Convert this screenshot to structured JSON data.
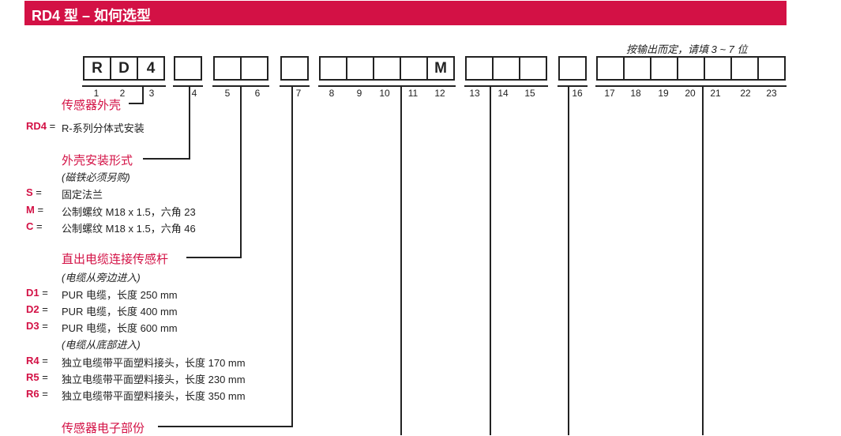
{
  "title": "RD4 型 – 如何选型",
  "output_note": "按输出而定，请填 3 ~ 7 位",
  "boxes": {
    "c1": "R",
    "c2": "D",
    "c3": "4",
    "c12": "M"
  },
  "positions": [
    "1",
    "2",
    "3",
    "4",
    "5",
    "6",
    "7",
    "8",
    "9",
    "10",
    "11",
    "12",
    "13",
    "14",
    "15",
    "16",
    "17",
    "18",
    "19",
    "20",
    "21",
    "22",
    "23"
  ],
  "sections": {
    "housing": {
      "label": "传感器外壳",
      "items": [
        {
          "code": "RD4",
          "eq": "=",
          "desc": "R-系列分体式安装"
        }
      ]
    },
    "mount": {
      "label": "外壳安装形式",
      "note": "(磁铁必须另购)",
      "items": [
        {
          "code": "S",
          "eq": "=",
          "desc": "固定法兰"
        },
        {
          "code": "M",
          "eq": "=",
          "desc": "公制螺纹 M18 x 1.5，六角 23"
        },
        {
          "code": "C",
          "eq": "=",
          "desc": "公制螺纹 M18 x 1.5，六角 46"
        }
      ]
    },
    "cable": {
      "label": "直出电缆连接传感杆",
      "note1": "(电缆从旁边进入)",
      "note2": "(电缆从底部进入)",
      "items": [
        {
          "code": "D1",
          "eq": "=",
          "desc": "PUR 电缆，长度 250 mm"
        },
        {
          "code": "D2",
          "eq": "=",
          "desc": "PUR 电缆，长度 400 mm"
        },
        {
          "code": "D3",
          "eq": "=",
          "desc": "PUR 电缆，长度 600 mm"
        },
        {
          "code": "R4",
          "eq": "=",
          "desc": "独立电缆带平面塑料接头，长度 170 mm"
        },
        {
          "code": "R5",
          "eq": "=",
          "desc": "独立电缆带平面塑料接头，长度 230 mm"
        },
        {
          "code": "R6",
          "eq": "=",
          "desc": "独立电缆带平面塑料接头，长度 350 mm"
        }
      ]
    },
    "electronics": {
      "label": "传感器电子部份"
    }
  }
}
